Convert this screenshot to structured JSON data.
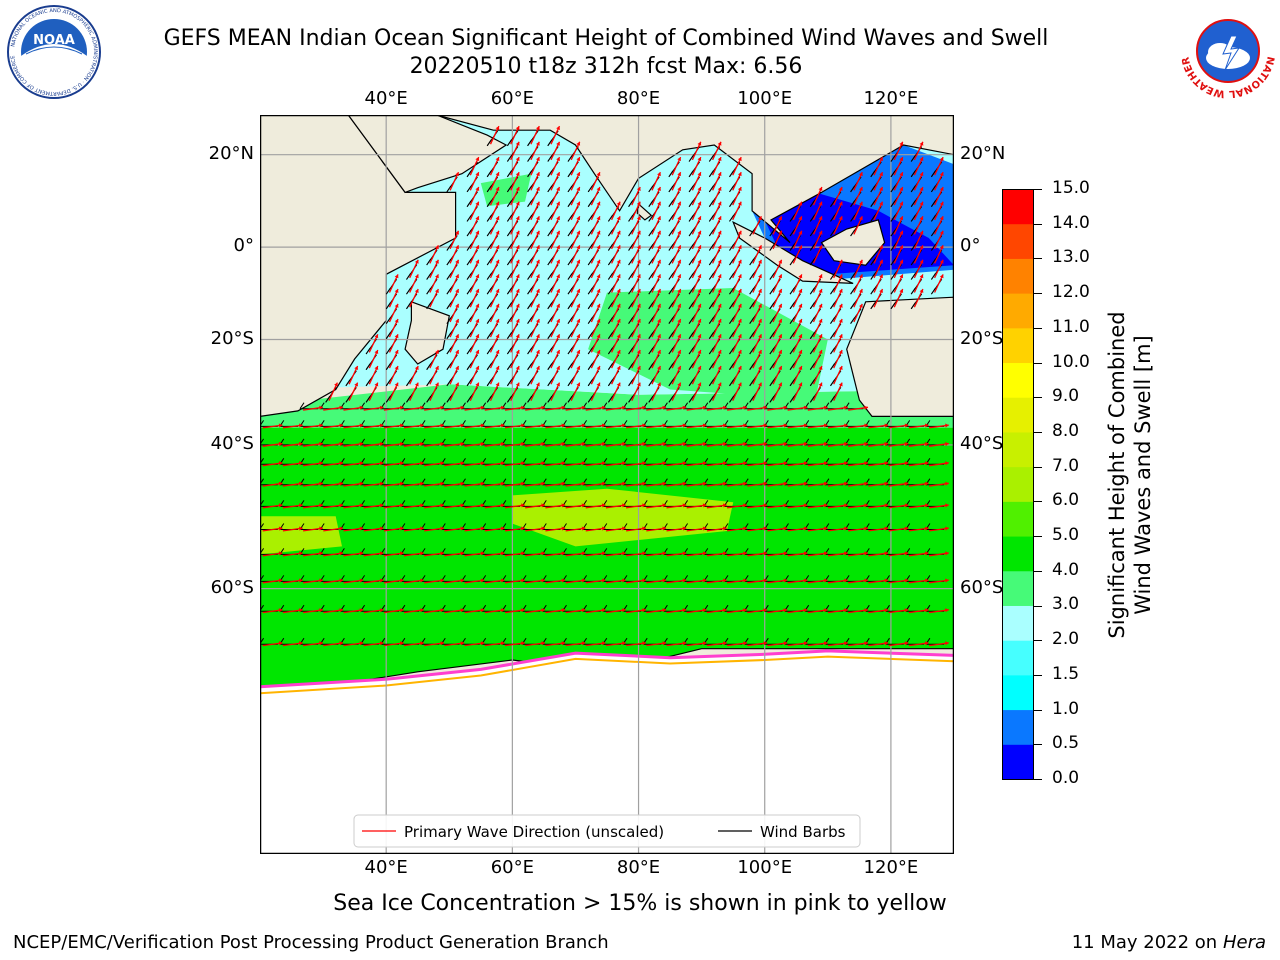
{
  "header": {
    "title_line1": "GEFS MEAN Indian Ocean Significant Height of Combined Wind Waves and Swell",
    "title_line2": "20220510 t18z 312h fcst   Max: 6.56"
  },
  "logos": {
    "left": {
      "name": "noaa-logo",
      "text": "NOAA",
      "ring_text": "NATIONAL OCEANIC AND ATMOSPHERIC ADMINISTRATION · U.S. DEPARTMENT OF COMMERCE"
    },
    "right": {
      "name": "nws-logo",
      "ring_text": "NATIONAL WEATHER SERVICE"
    }
  },
  "map": {
    "lon_range": [
      20,
      130
    ],
    "lat_range": [
      -79,
      28
    ],
    "lon_ticks": [
      {
        "value": 40,
        "label": "40°E"
      },
      {
        "value": 60,
        "label": "60°E"
      },
      {
        "value": 80,
        "label": "80°E"
      },
      {
        "value": 100,
        "label": "100°E"
      },
      {
        "value": 120,
        "label": "120°E"
      }
    ],
    "lat_ticks": [
      {
        "value": 20,
        "label": "20°N"
      },
      {
        "value": 0,
        "label": "0°"
      },
      {
        "value": -20,
        "label": "20°S"
      },
      {
        "value": -40,
        "label": "40°S"
      },
      {
        "value": -60,
        "label": "60°S"
      }
    ],
    "land_color": "#efecdc",
    "ice_color": "#ffffff",
    "legend": {
      "wave_direction": "Primary Wave Direction (unscaled)",
      "wind_barbs": "Wind Barbs"
    }
  },
  "colorbar": {
    "label_line1": "Significant Height of Combined",
    "label_line2": "Wind Waves and Swell [m]",
    "levels": [
      0.0,
      0.5,
      1.0,
      1.5,
      2.0,
      3.0,
      4.0,
      5.0,
      6.0,
      7.0,
      8.0,
      9.0,
      10.0,
      11.0,
      12.0,
      13.0,
      14.0,
      15.0
    ],
    "tick_labels": [
      "0.0",
      "0.5",
      "1.0",
      "1.5",
      "2.0",
      "3.0",
      "4.0",
      "5.0",
      "6.0",
      "7.0",
      "8.0",
      "9.0",
      "10.0",
      "11.0",
      "12.0",
      "13.0",
      "14.0",
      "15.0"
    ],
    "colors": [
      "#0000ff",
      "#0a78ff",
      "#00ffff",
      "#46ffff",
      "#aaffff",
      "#46fa78",
      "#00e600",
      "#50f000",
      "#aaf000",
      "#c8f000",
      "#e6f000",
      "#ffff00",
      "#ffd200",
      "#ffaa00",
      "#ff8200",
      "#ff4600",
      "#ff0000"
    ]
  },
  "footer": {
    "caption": "Sea Ice Concentration > 15% is shown in pink to yellow",
    "credit_left": "NCEP/EMC/Verification Post Processing Product Generation Branch",
    "credit_date": "11 May 2022 on",
    "credit_host": "Hera"
  }
}
